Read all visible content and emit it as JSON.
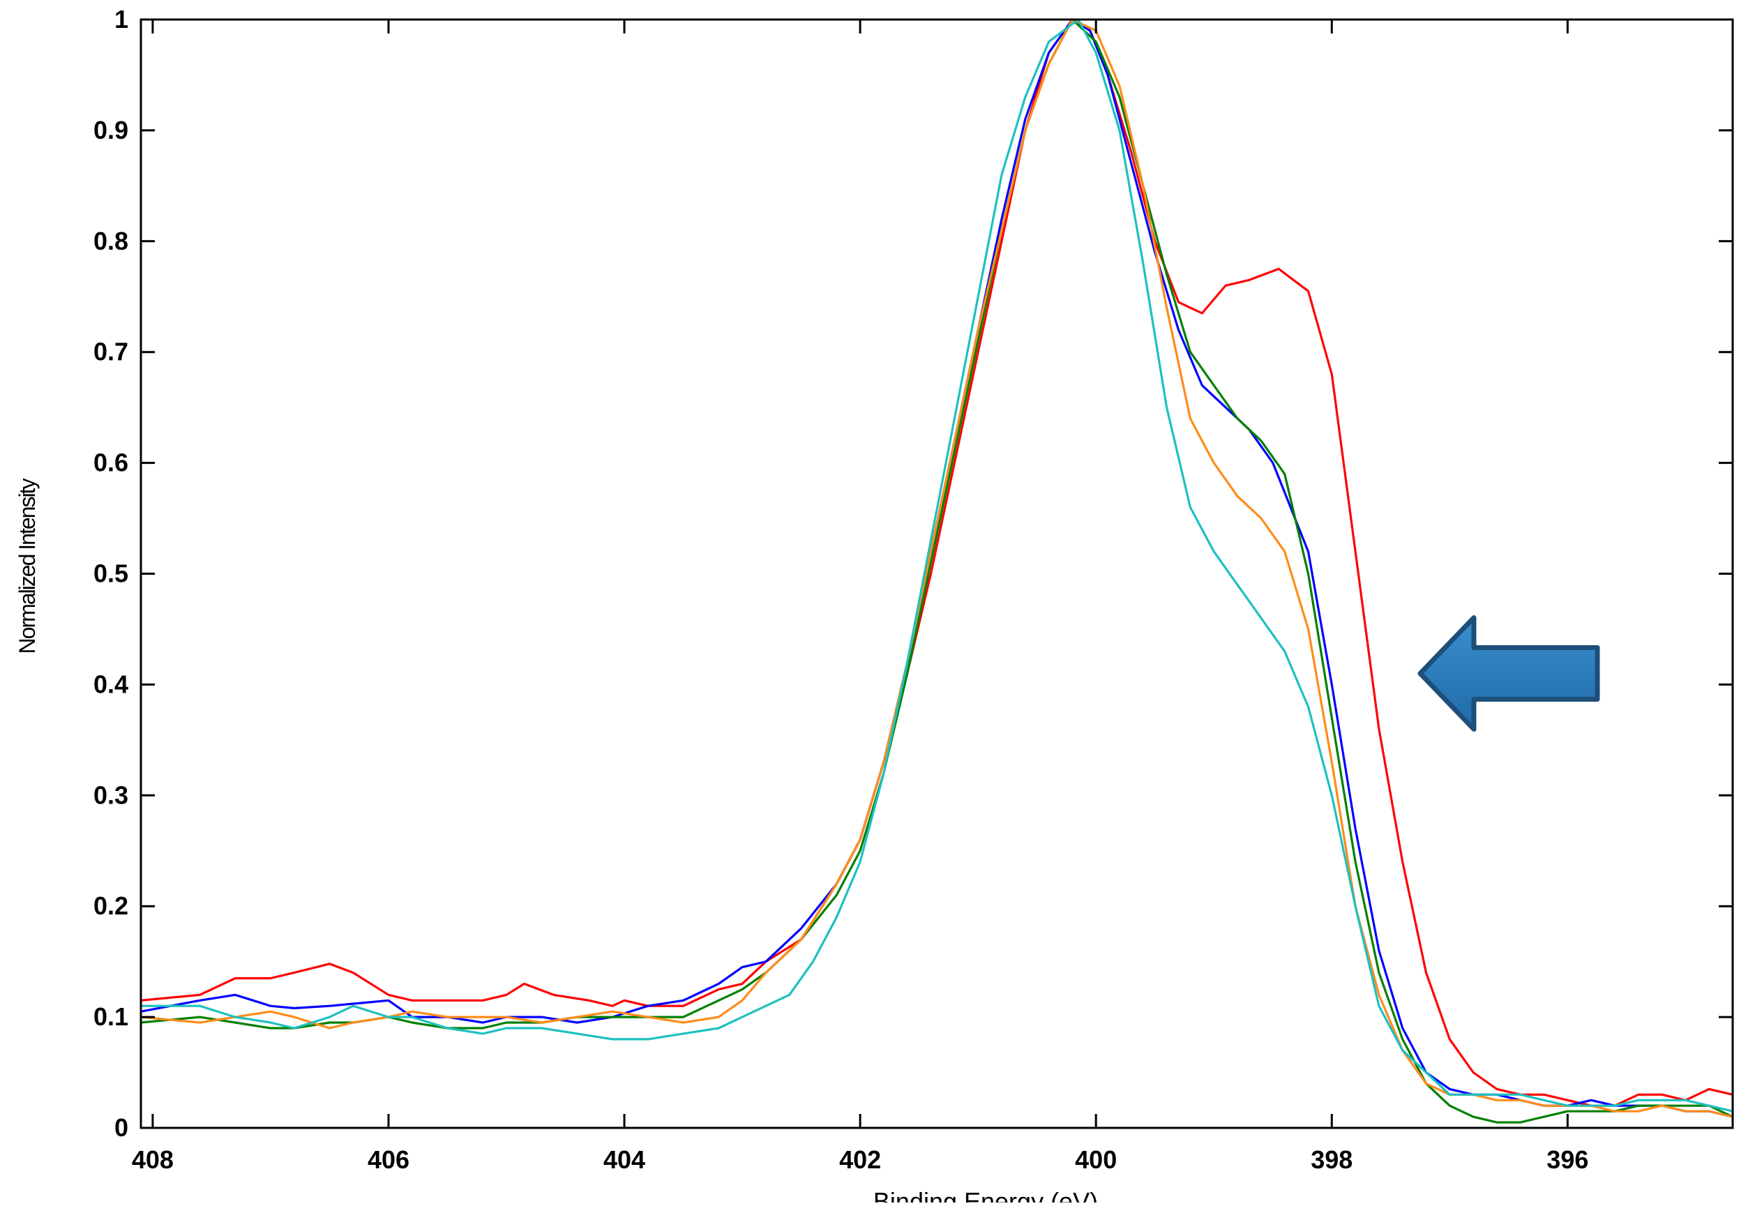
{
  "chart_data": {
    "type": "line",
    "title": "",
    "xlabel": "Binding Energy (eV)",
    "ylabel": "Normalized Intensity",
    "xlim": [
      394.6,
      408.1
    ],
    "ylim": [
      0,
      1
    ],
    "x_reversed": true,
    "x_ticks": [
      408,
      406,
      404,
      402,
      400,
      398,
      396
    ],
    "x_tick_labels": [
      "408",
      "406",
      "404",
      "402",
      "400",
      "398",
      "396"
    ],
    "y_ticks": [
      0,
      0.1,
      0.2,
      0.3,
      0.4,
      0.5,
      0.6,
      0.7,
      0.8,
      0.9,
      1
    ],
    "y_tick_labels": [
      "0",
      "0.1",
      "0.2",
      "0.3",
      "0.4",
      "0.5",
      "0.6",
      "0.7",
      "0.8",
      "0.9",
      "1"
    ],
    "grid": false,
    "legend": "none",
    "annotation": {
      "type": "arrow",
      "direction": "left",
      "color": "#2e7bb8",
      "points_at_y": 0.41
    },
    "series": [
      {
        "color": "#ff0000",
        "x": [
          408.1,
          407.6,
          407.3,
          407.0,
          406.8,
          406.5,
          406.3,
          406.0,
          405.8,
          405.5,
          405.2,
          405.0,
          404.85,
          404.6,
          404.3,
          404.1,
          404.0,
          403.8,
          403.5,
          403.2,
          403.0,
          402.8,
          402.5,
          402.2,
          402.0,
          401.8,
          401.6,
          401.4,
          401.2,
          401.0,
          400.8,
          400.6,
          400.4,
          400.2,
          400.05,
          399.9,
          399.7,
          399.5,
          399.3,
          399.1,
          398.9,
          398.7,
          398.45,
          398.2,
          398.0,
          397.8,
          397.6,
          397.4,
          397.2,
          397.0,
          396.8,
          396.6,
          396.4,
          396.2,
          396.0,
          395.8,
          395.6,
          395.4,
          395.2,
          395.0,
          394.8,
          394.6
        ],
        "y": [
          0.115,
          0.12,
          0.135,
          0.135,
          0.14,
          0.148,
          0.14,
          0.12,
          0.115,
          0.115,
          0.115,
          0.12,
          0.13,
          0.12,
          0.115,
          0.11,
          0.115,
          0.11,
          0.11,
          0.125,
          0.13,
          0.15,
          0.17,
          0.22,
          0.26,
          0.33,
          0.41,
          0.5,
          0.6,
          0.7,
          0.8,
          0.9,
          0.97,
          1.0,
          0.99,
          0.95,
          0.88,
          0.8,
          0.745,
          0.735,
          0.76,
          0.765,
          0.775,
          0.755,
          0.68,
          0.52,
          0.36,
          0.24,
          0.14,
          0.08,
          0.05,
          0.035,
          0.03,
          0.03,
          0.025,
          0.02,
          0.02,
          0.03,
          0.03,
          0.025,
          0.035,
          0.03
        ]
      },
      {
        "color": "#0000ff",
        "x": [
          408.1,
          407.6,
          407.3,
          407.0,
          406.8,
          406.5,
          406.3,
          406.0,
          405.8,
          405.5,
          405.2,
          405.0,
          404.7,
          404.4,
          404.1,
          403.8,
          403.5,
          403.2,
          403.0,
          402.8,
          402.5,
          402.2,
          402.0,
          401.8,
          401.6,
          401.4,
          401.2,
          401.0,
          400.8,
          400.6,
          400.4,
          400.2,
          400.05,
          399.9,
          399.7,
          399.5,
          399.3,
          399.1,
          398.9,
          398.7,
          398.5,
          398.2,
          398.0,
          397.8,
          397.6,
          397.4,
          397.2,
          397.0,
          396.8,
          396.6,
          396.4,
          396.2,
          396.0,
          395.8,
          395.6,
          395.4,
          395.2,
          395.0,
          394.8,
          394.6
        ],
        "y": [
          0.105,
          0.115,
          0.12,
          0.11,
          0.108,
          0.11,
          0.112,
          0.115,
          0.1,
          0.1,
          0.095,
          0.1,
          0.1,
          0.095,
          0.1,
          0.11,
          0.115,
          0.13,
          0.145,
          0.15,
          0.18,
          0.22,
          0.26,
          0.33,
          0.42,
          0.52,
          0.62,
          0.72,
          0.82,
          0.91,
          0.97,
          1.0,
          0.99,
          0.95,
          0.87,
          0.79,
          0.72,
          0.67,
          0.65,
          0.63,
          0.6,
          0.52,
          0.4,
          0.27,
          0.16,
          0.09,
          0.05,
          0.035,
          0.03,
          0.03,
          0.025,
          0.02,
          0.02,
          0.025,
          0.02,
          0.02,
          0.02,
          0.015,
          0.015,
          0.01
        ]
      },
      {
        "color": "#008000",
        "x": [
          408.1,
          407.6,
          407.3,
          407.0,
          406.8,
          406.5,
          406.3,
          406.0,
          405.8,
          405.5,
          405.2,
          405.0,
          404.7,
          404.4,
          404.1,
          403.8,
          403.5,
          403.2,
          403.0,
          402.8,
          402.5,
          402.2,
          402.0,
          401.8,
          401.6,
          401.4,
          401.2,
          401.0,
          400.8,
          400.6,
          400.4,
          400.2,
          400.0,
          399.8,
          399.6,
          399.4,
          399.2,
          399.0,
          398.8,
          398.6,
          398.4,
          398.2,
          398.0,
          397.8,
          397.6,
          397.4,
          397.2,
          397.0,
          396.8,
          396.6,
          396.4,
          396.2,
          396.0,
          395.8,
          395.6,
          395.4,
          395.2,
          395.0,
          394.8,
          394.6
        ],
        "y": [
          0.095,
          0.1,
          0.095,
          0.09,
          0.09,
          0.095,
          0.095,
          0.1,
          0.095,
          0.09,
          0.09,
          0.095,
          0.095,
          0.1,
          0.1,
          0.1,
          0.1,
          0.115,
          0.125,
          0.14,
          0.17,
          0.21,
          0.25,
          0.32,
          0.41,
          0.51,
          0.61,
          0.71,
          0.81,
          0.9,
          0.96,
          1.0,
          0.98,
          0.93,
          0.85,
          0.77,
          0.7,
          0.67,
          0.64,
          0.62,
          0.59,
          0.5,
          0.37,
          0.24,
          0.14,
          0.08,
          0.04,
          0.02,
          0.01,
          0.005,
          0.005,
          0.01,
          0.015,
          0.015,
          0.015,
          0.02,
          0.02,
          0.02,
          0.02,
          0.01
        ]
      },
      {
        "color": "#ff8c1a",
        "x": [
          408.1,
          407.6,
          407.3,
          407.0,
          406.8,
          406.5,
          406.3,
          406.0,
          405.8,
          405.5,
          405.2,
          405.0,
          404.7,
          404.4,
          404.1,
          403.8,
          403.5,
          403.2,
          403.0,
          402.8,
          402.5,
          402.2,
          402.0,
          401.8,
          401.6,
          401.4,
          401.2,
          401.0,
          400.8,
          400.6,
          400.4,
          400.2,
          400.0,
          399.8,
          399.6,
          399.4,
          399.2,
          399.0,
          398.8,
          398.6,
          398.4,
          398.2,
          398.0,
          397.8,
          397.6,
          397.4,
          397.2,
          397.0,
          396.8,
          396.6,
          396.4,
          396.2,
          396.0,
          395.8,
          395.6,
          395.4,
          395.2,
          395.0,
          394.8,
          394.6
        ],
        "y": [
          0.1,
          0.095,
          0.1,
          0.105,
          0.1,
          0.09,
          0.095,
          0.1,
          0.105,
          0.1,
          0.1,
          0.1,
          0.095,
          0.1,
          0.105,
          0.1,
          0.095,
          0.1,
          0.115,
          0.14,
          0.17,
          0.22,
          0.26,
          0.33,
          0.42,
          0.52,
          0.62,
          0.72,
          0.81,
          0.9,
          0.96,
          1.0,
          0.99,
          0.94,
          0.85,
          0.74,
          0.64,
          0.6,
          0.57,
          0.55,
          0.52,
          0.45,
          0.33,
          0.2,
          0.12,
          0.07,
          0.04,
          0.03,
          0.03,
          0.025,
          0.025,
          0.02,
          0.02,
          0.02,
          0.015,
          0.015,
          0.02,
          0.015,
          0.015,
          0.01
        ]
      },
      {
        "color": "#1ec0c0",
        "x": [
          408.1,
          407.6,
          407.3,
          407.0,
          406.8,
          406.5,
          406.3,
          406.0,
          405.8,
          405.5,
          405.2,
          405.0,
          404.7,
          404.4,
          404.1,
          403.8,
          403.5,
          403.2,
          403.0,
          402.8,
          402.6,
          402.4,
          402.2,
          402.0,
          401.8,
          401.6,
          401.4,
          401.2,
          401.0,
          400.8,
          400.6,
          400.4,
          400.15,
          400.0,
          399.8,
          399.6,
          399.4,
          399.2,
          399.0,
          398.8,
          398.6,
          398.4,
          398.2,
          398.0,
          397.8,
          397.6,
          397.4,
          397.2,
          397.0,
          396.8,
          396.6,
          396.4,
          396.2,
          396.0,
          395.8,
          395.6,
          395.4,
          395.2,
          395.0,
          394.8,
          394.6
        ],
        "y": [
          0.11,
          0.11,
          0.1,
          0.095,
          0.09,
          0.1,
          0.11,
          0.1,
          0.1,
          0.09,
          0.085,
          0.09,
          0.09,
          0.085,
          0.08,
          0.08,
          0.085,
          0.09,
          0.1,
          0.11,
          0.12,
          0.15,
          0.19,
          0.24,
          0.32,
          0.42,
          0.53,
          0.64,
          0.75,
          0.86,
          0.93,
          0.98,
          1.0,
          0.97,
          0.9,
          0.78,
          0.65,
          0.56,
          0.52,
          0.49,
          0.46,
          0.43,
          0.38,
          0.3,
          0.2,
          0.11,
          0.07,
          0.05,
          0.03,
          0.03,
          0.03,
          0.03,
          0.025,
          0.02,
          0.02,
          0.02,
          0.025,
          0.025,
          0.025,
          0.02,
          0.015
        ]
      }
    ]
  }
}
